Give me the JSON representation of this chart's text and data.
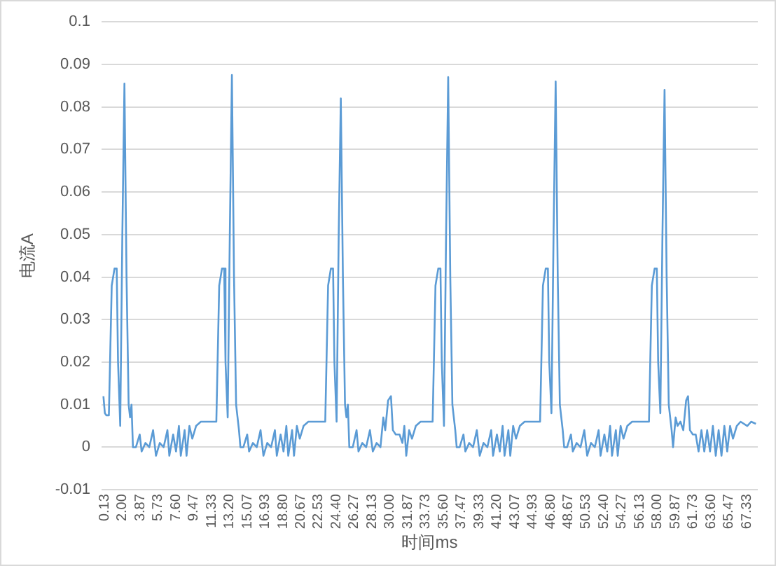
{
  "chart_data": {
    "type": "line",
    "xlabel": "时间ms",
    "ylabel": "电流A",
    "xlim": [
      -0.2,
      68.5
    ],
    "ylim": [
      -0.01,
      0.1
    ],
    "yticks": [
      -0.01,
      0,
      0.01,
      0.02,
      0.03,
      0.04,
      0.05,
      0.06,
      0.07,
      0.08,
      0.09,
      0.1
    ],
    "xticks": [
      0.13,
      {
        "value": 2.0,
        "label": "2.00"
      },
      3.87,
      5.73,
      {
        "value": 7.6,
        "label": "7.60"
      },
      9.47,
      11.33,
      {
        "value": 13.2,
        "label": "13.20"
      },
      15.07,
      16.93,
      {
        "value": 18.8,
        "label": "18.80"
      },
      20.67,
      22.53,
      {
        "value": 24.4,
        "label": "24.40"
      },
      26.27,
      28.13,
      {
        "value": 30.0,
        "label": "30.00"
      },
      31.87,
      33.73,
      {
        "value": 35.6,
        "label": "35.60"
      },
      37.47,
      39.33,
      {
        "value": 41.2,
        "label": "41.20"
      },
      43.07,
      44.93,
      {
        "value": 46.8,
        "label": "46.80"
      },
      48.67,
      50.53,
      {
        "value": 52.4,
        "label": "52.40"
      },
      54.27,
      56.13,
      {
        "value": 58.0,
        "label": "58.00"
      },
      59.87,
      61.73,
      {
        "value": 63.6,
        "label": "63.60"
      },
      65.47,
      67.33
    ],
    "grid": "y",
    "legend": false,
    "marker": "none",
    "line_style": "solid",
    "series": [
      {
        "color": "#5b9bd5",
        "x": [
          0,
          0.15,
          0.3,
          0.57,
          0.87,
          1.16,
          1.39,
          1.53,
          1.76,
          1.98,
          2.2,
          2.42,
          2.64,
          2.79,
          2.94,
          3.09,
          3.4,
          3.8,
          4.0,
          4.4,
          4.8,
          5.2,
          5.5,
          5.9,
          6.3,
          6.7,
          6.9,
          7.3,
          7.6,
          7.9,
          8.1,
          8.5,
          8.7,
          9.0,
          9.3,
          9.7,
          10.2,
          11.2,
          11.82,
          12.12,
          12.41,
          12.64,
          12.78,
          13.01,
          13.23,
          13.45,
          13.67,
          13.89,
          14.04,
          14.19,
          14.34,
          14.65,
          15.05,
          15.25,
          15.65,
          16.05,
          16.45,
          16.75,
          17.15,
          17.55,
          17.95,
          18.15,
          18.55,
          18.85,
          19.15,
          19.35,
          19.75,
          19.95,
          20.25,
          20.55,
          20.95,
          21.45,
          22.45,
          23.22,
          23.52,
          23.81,
          24.04,
          24.18,
          24.41,
          24.63,
          24.85,
          25.07,
          25.29,
          25.44,
          25.59,
          25.74,
          26.1,
          26.5,
          26.7,
          27.1,
          27.5,
          27.9,
          28.2,
          28.6,
          29.0,
          29.3,
          29.5,
          29.8,
          30.1,
          30.3,
          30.6,
          31.0,
          31.3,
          31.5,
          31.7,
          32.0,
          32.3,
          32.7,
          33.2,
          34.0,
          34.46,
          34.76,
          35.05,
          35.28,
          35.42,
          35.65,
          35.87,
          36.09,
          36.31,
          36.53,
          36.68,
          36.83,
          36.98,
          37.29,
          37.69,
          37.89,
          38.29,
          38.69,
          39.09,
          39.39,
          39.79,
          40.19,
          40.59,
          40.79,
          41.19,
          41.49,
          41.79,
          41.99,
          42.39,
          42.59,
          42.89,
          43.19,
          43.59,
          44.09,
          45.09,
          45.71,
          46.01,
          46.3,
          46.53,
          46.67,
          46.9,
          47.12,
          47.34,
          47.56,
          47.78,
          47.93,
          48.08,
          48.23,
          48.54,
          48.94,
          49.14,
          49.54,
          49.94,
          50.34,
          50.64,
          51.04,
          51.44,
          51.84,
          52.04,
          52.44,
          52.74,
          53.04,
          53.24,
          53.64,
          53.84,
          54.14,
          54.44,
          54.84,
          55.34,
          56.34,
          57.11,
          57.41,
          57.7,
          57.93,
          58.07,
          58.3,
          58.52,
          58.74,
          58.96,
          59.18,
          59.33,
          59.48,
          59.63,
          59.9,
          60.1,
          60.4,
          60.7,
          61.0,
          61.2,
          61.4,
          61.7,
          62.0,
          62.3,
          62.6,
          62.9,
          63.2,
          63.5,
          63.8,
          64.1,
          64.4,
          64.7,
          65.0,
          65.3,
          65.6,
          65.9,
          66.3,
          66.7,
          67.4,
          67.8,
          68.3
        ],
        "values": [
          0.012,
          0.008,
          0.0075,
          0.0075,
          0.038,
          0.042,
          0.042,
          0.02,
          0.005,
          0.05,
          0.0855,
          0.04,
          0.01,
          0.007,
          0.01,
          0,
          0,
          0.003,
          -0.001,
          0.001,
          0,
          0.004,
          -0.002,
          0.001,
          0,
          0.004,
          -0.002,
          0.003,
          -0.001,
          0.005,
          -0.002,
          0.004,
          -0.002,
          0.005,
          0.002,
          0.005,
          0.006,
          0.006,
          0.006,
          0.038,
          0.042,
          0.042,
          0.02,
          0.007,
          0.05,
          0.0875,
          0.04,
          0.01,
          0.007,
          0.004,
          0,
          0,
          0.003,
          -0.001,
          0.001,
          0,
          0.004,
          -0.002,
          0.001,
          0,
          0.004,
          -0.002,
          0.003,
          -0.001,
          0.005,
          -0.002,
          0.004,
          -0.002,
          0.005,
          0.002,
          0.005,
          0.006,
          0.006,
          0.006,
          0.038,
          0.042,
          0.042,
          0.02,
          0.006,
          0.05,
          0.082,
          0.04,
          0.01,
          0.007,
          0.01,
          0,
          0,
          0.004,
          -0.001,
          0.001,
          0,
          0.004,
          -0.001,
          0.001,
          0,
          0.007,
          0.004,
          0.011,
          0.012,
          0.004,
          0.003,
          0.003,
          0.001,
          0.005,
          -0.002,
          0.004,
          0.002,
          0.005,
          0.006,
          0.006,
          0.006,
          0.038,
          0.042,
          0.042,
          0.02,
          0.005,
          0.05,
          0.087,
          0.04,
          0.01,
          0.007,
          0.004,
          0,
          0,
          0.003,
          -0.001,
          0.001,
          0,
          0.004,
          -0.002,
          0.001,
          0,
          0.004,
          -0.002,
          0.003,
          -0.001,
          0.005,
          -0.002,
          0.004,
          -0.002,
          0.005,
          0.002,
          0.005,
          0.006,
          0.006,
          0.006,
          0.038,
          0.042,
          0.042,
          0.02,
          0.008,
          0.05,
          0.086,
          0.04,
          0.01,
          0.007,
          0.004,
          0,
          0,
          0.003,
          -0.001,
          0.001,
          0,
          0.004,
          -0.002,
          0.001,
          0,
          0.004,
          -0.002,
          0.003,
          -0.001,
          0.005,
          -0.002,
          0.004,
          -0.002,
          0.005,
          0.002,
          0.005,
          0.006,
          0.006,
          0.006,
          0.038,
          0.042,
          0.042,
          0.02,
          0.008,
          0.05,
          0.084,
          0.04,
          0.01,
          0.007,
          0.004,
          0,
          0.007,
          0.005,
          0.006,
          0.004,
          0.011,
          0.012,
          0.004,
          0.003,
          0.003,
          -0.001,
          0.004,
          -0.001,
          0.004,
          -0.001,
          0.005,
          -0.002,
          0.004,
          -0.002,
          0.005,
          -0.001,
          0.005,
          0.002,
          0.005,
          0.006,
          0.005,
          0.006,
          0.0055
        ]
      }
    ]
  }
}
